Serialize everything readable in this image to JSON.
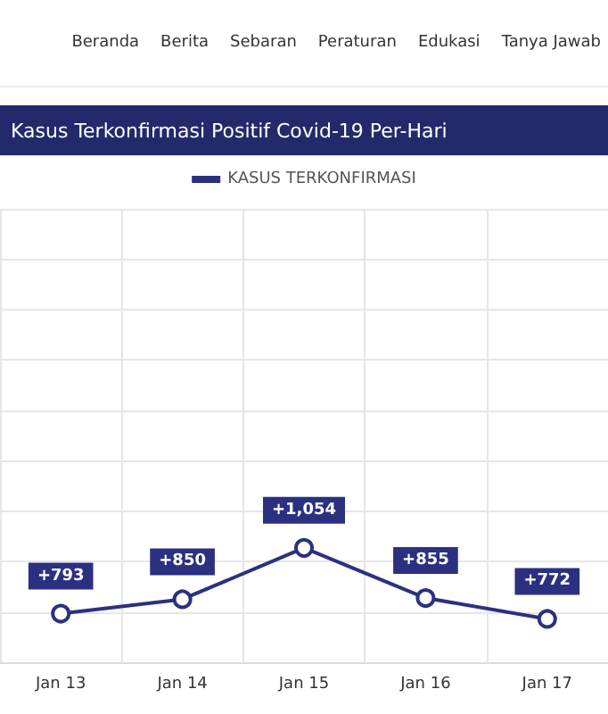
{
  "chart_data": {
    "type": "line",
    "title": "Kasus Terkonfirmasi Positif Covid-19 Per-Hari",
    "annotations": [
      "Beranda",
      "Berita",
      "Sebaran",
      "Peraturan",
      "Edukasi",
      "Tanya Jawab"
    ],
    "categories": [
      "Jan 13",
      "Jan 14",
      "Jan 15",
      "Jan 16",
      "Jan 17"
    ],
    "series": [
      {
        "name": "KASUS TERKONFIRMASI",
        "color": "#2b3180",
        "values": [
          793,
          850,
          1054,
          855,
          772
        ],
        "value_labels": [
          "+793",
          "+850",
          "+1,054",
          "+855",
          "+772"
        ]
      }
    ],
    "ylim": [
      600,
      2400
    ],
    "yticks": [
      {
        "value": 600,
        "label": null
      },
      {
        "value": 800,
        "label": null
      },
      {
        "value": 1000,
        "label": null
      },
      {
        "value": 1200,
        "label": null
      },
      {
        "value": 1400,
        "label": null
      },
      {
        "value": 1600,
        "label": null
      },
      {
        "value": 1800,
        "label": null
      },
      {
        "value": 2000,
        "label": null
      },
      {
        "value": 2200,
        "label": null
      },
      {
        "value": 2400,
        "label": null
      }
    ],
    "tick_labels": "x",
    "grid": true,
    "legend": "top",
    "marker": "circle",
    "line_style": "solid"
  }
}
